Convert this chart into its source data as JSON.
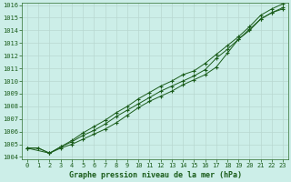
{
  "title": "Graphe pression niveau de la mer (hPa)",
  "bg_color": "#cceee8",
  "grid_color": "#b8d8d0",
  "line_color": "#1a5c1a",
  "spine_color": "#2d6e2d",
  "xlim": [
    -0.5,
    23.5
  ],
  "ylim": [
    1003.8,
    1016.2
  ],
  "yticks": [
    1004,
    1005,
    1006,
    1007,
    1008,
    1009,
    1010,
    1011,
    1012,
    1013,
    1014,
    1015,
    1016
  ],
  "xticks": [
    0,
    1,
    2,
    3,
    4,
    5,
    6,
    7,
    8,
    9,
    10,
    11,
    12,
    13,
    14,
    15,
    16,
    17,
    18,
    19,
    20,
    21,
    22,
    23
  ],
  "line1_x": [
    0,
    1,
    2,
    3,
    4,
    5,
    6,
    7,
    8,
    9,
    10,
    11,
    12,
    13,
    14,
    15,
    16,
    17,
    18,
    19,
    20,
    21,
    22,
    23
  ],
  "line1": [
    1004.7,
    1004.7,
    1004.3,
    1004.7,
    1005.0,
    1005.4,
    1005.8,
    1006.2,
    1006.7,
    1007.3,
    1007.9,
    1008.4,
    1008.8,
    1009.2,
    1009.7,
    1010.1,
    1010.5,
    1011.1,
    1012.2,
    1013.3,
    1014.0,
    1014.9,
    1015.4,
    1015.7
  ],
  "line2_x": [
    0,
    1,
    2,
    3,
    4,
    5,
    6,
    7,
    8,
    9,
    10,
    11,
    12,
    13,
    14,
    15,
    16,
    17,
    18,
    19,
    20,
    21,
    22,
    23
  ],
  "line2": [
    1004.7,
    1004.7,
    1004.3,
    1004.8,
    1005.2,
    1005.7,
    1006.1,
    1006.6,
    1007.2,
    1007.7,
    1008.2,
    1008.7,
    1009.2,
    1009.6,
    1010.0,
    1010.4,
    1010.9,
    1011.8,
    1012.5,
    1013.3,
    1014.1,
    1014.9,
    1015.4,
    1015.8
  ],
  "line3_x": [
    0,
    2,
    3,
    4,
    5,
    6,
    7,
    8,
    9,
    10,
    11,
    12,
    13,
    14,
    15,
    16,
    17,
    18,
    19,
    20,
    21,
    22,
    23
  ],
  "line3": [
    1004.7,
    1004.3,
    1004.8,
    1005.3,
    1005.9,
    1006.4,
    1006.9,
    1007.5,
    1008.0,
    1008.6,
    1009.1,
    1009.6,
    1010.0,
    1010.5,
    1010.8,
    1011.4,
    1012.1,
    1012.8,
    1013.5,
    1014.3,
    1015.2,
    1015.7,
    1016.1
  ]
}
